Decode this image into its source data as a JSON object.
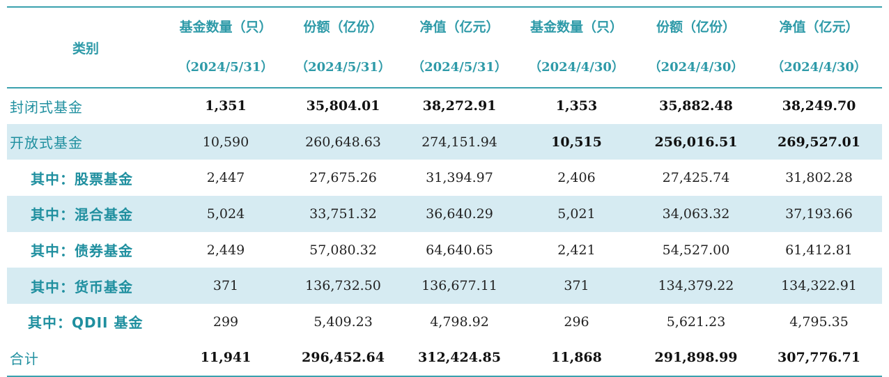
{
  "table": {
    "headers": {
      "category": "类别",
      "columns": [
        {
          "title": "基金数量（只）",
          "date": "（2024/5/31）"
        },
        {
          "title": "份额（亿份）",
          "date": "（2024/5/31）"
        },
        {
          "title": "净值（亿元）",
          "date": "（2024/5/31）"
        },
        {
          "title": "基金数量（只）",
          "date": "（2024/4/30）"
        },
        {
          "title": "份额（亿份）",
          "date": "（2024/4/30）"
        },
        {
          "title": "净值（亿元）",
          "date": "（2024/4/30）"
        }
      ]
    },
    "rows": [
      {
        "name": "封闭式基金",
        "values": [
          "1,351",
          "35,804.01",
          "38,272.91",
          "1,353",
          "35,882.48",
          "38,249.70"
        ]
      },
      {
        "name": "开放式基金",
        "values": [
          "10,590",
          "260,648.63",
          "274,151.94",
          "10,515",
          "256,016.51",
          "269,527.01"
        ]
      },
      {
        "name": "其中：股票基金",
        "values": [
          "2,447",
          "27,675.26",
          "31,394.97",
          "2,406",
          "27,425.74",
          "31,802.28"
        ]
      },
      {
        "name": "其中：混合基金",
        "values": [
          "5,024",
          "33,751.32",
          "36,640.29",
          "5,021",
          "34,063.32",
          "37,193.66"
        ]
      },
      {
        "name": "其中：债券基金",
        "values": [
          "2,449",
          "57,080.32",
          "64,640.65",
          "2,421",
          "54,527.00",
          "61,412.81"
        ]
      },
      {
        "name": "其中：货币基金",
        "values": [
          "371",
          "136,732.50",
          "136,677.11",
          "371",
          "134,379.22",
          "134,322.91"
        ]
      },
      {
        "name": "其中：QDII 基金",
        "values": [
          "299",
          "5,409.23",
          "4,798.92",
          "296",
          "5,621.23",
          "4,795.35"
        ]
      },
      {
        "name": "合计",
        "values": [
          "11,941",
          "296,452.64",
          "312,424.85",
          "11,868",
          "291,898.99",
          "307,776.71"
        ]
      }
    ]
  }
}
